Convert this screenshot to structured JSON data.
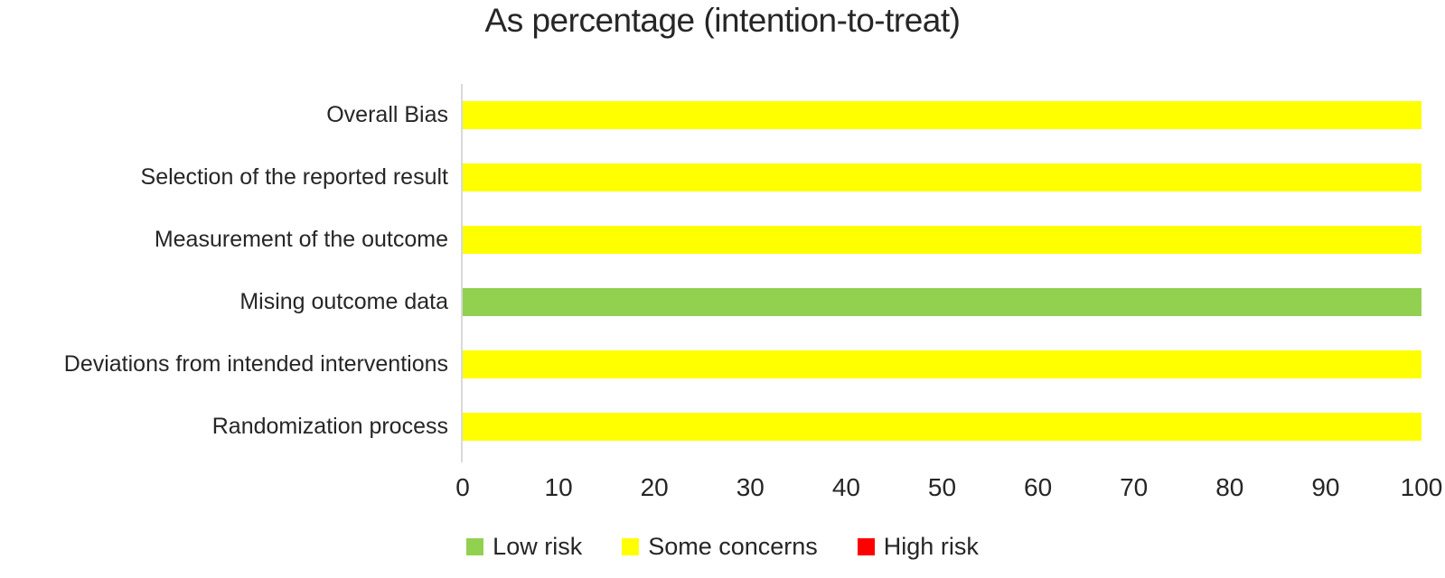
{
  "title": "As percentage (intention-to-treat)",
  "colors": {
    "low_risk": "#92d050",
    "some_concerns": "#ffff00",
    "high_risk": "#ff0000",
    "axis_line": "#d9d9d9",
    "text": "#262626",
    "background": "#ffffff"
  },
  "chart_data": {
    "type": "bar",
    "orientation": "horizontal",
    "stacked": true,
    "title": "As percentage (intention-to-treat)",
    "categories": [
      "Overall Bias",
      "Selection of the reported result",
      "Measurement of the outcome",
      "Mising outcome data",
      "Deviations from intended interventions",
      "Randomization process"
    ],
    "series": [
      {
        "name": "Low risk",
        "color": "#92d050",
        "values": [
          0,
          0,
          0,
          100,
          0,
          0
        ]
      },
      {
        "name": "Some concerns",
        "color": "#ffff00",
        "values": [
          100,
          100,
          100,
          0,
          100,
          100
        ]
      },
      {
        "name": "High risk",
        "color": "#ff0000",
        "values": [
          0,
          0,
          0,
          0,
          0,
          0
        ]
      }
    ],
    "xlabel": "",
    "ylabel": "",
    "xlim": [
      0,
      100
    ],
    "x_ticks": [
      0,
      10,
      20,
      30,
      40,
      50,
      60,
      70,
      80,
      90,
      100
    ],
    "grid": false,
    "legend_position": "bottom",
    "legend": [
      {
        "label": "Low risk",
        "color": "#92d050"
      },
      {
        "label": "Some concerns",
        "color": "#ffff00"
      },
      {
        "label": "High risk",
        "color": "#ff0000"
      }
    ]
  }
}
